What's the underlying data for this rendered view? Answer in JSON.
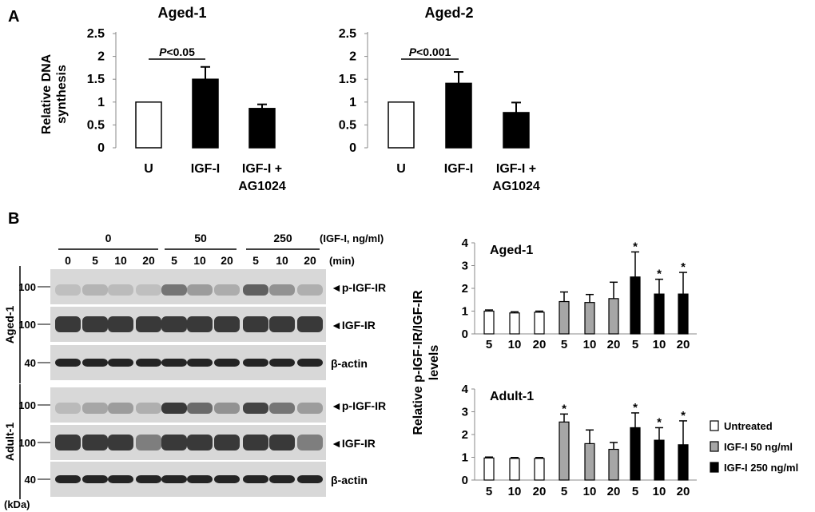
{
  "panels": {
    "a": "A",
    "b": "B"
  },
  "charts_a": [
    {
      "type": "bar",
      "title": "Aged-1",
      "ylabel": [
        "Relative DNA",
        "synthesis"
      ],
      "yticks": [
        "0",
        "0.5",
        "1",
        "1.5",
        "2",
        "2.5"
      ],
      "ylim": [
        0,
        2.5
      ],
      "categories": [
        [
          "U"
        ],
        [
          "IGF-I"
        ],
        [
          "IGF-I +",
          "AG1024"
        ]
      ],
      "values": [
        1.0,
        1.5,
        0.86
      ],
      "errors": [
        0.0,
        0.27,
        0.09
      ],
      "colors": [
        "#ffffff",
        "#000000",
        "#000000"
      ],
      "annotation": {
        "p_label": "P",
        "p_value": "<0.05"
      }
    },
    {
      "type": "bar",
      "title": "Aged-2",
      "ylabel": [],
      "yticks": [
        "0",
        "0.5",
        "1",
        "1.5",
        "2",
        "2.5"
      ],
      "ylim": [
        0,
        2.5
      ],
      "categories": [
        [
          "U"
        ],
        [
          "IGF-I"
        ],
        [
          "IGF-I +",
          "AG1024"
        ]
      ],
      "values": [
        1.0,
        1.41,
        0.77
      ],
      "errors": [
        0.0,
        0.25,
        0.22
      ],
      "colors": [
        "#ffffff",
        "#000000",
        "#000000"
      ],
      "annotation": {
        "p_label": "P",
        "p_value": "<0.001"
      }
    }
  ],
  "blot": {
    "dose_groups": [
      "0",
      "50",
      "250"
    ],
    "dose_unit": "(IGF-I, ng/ml)",
    "time_labels": [
      "0",
      "5",
      "10",
      "20",
      "5",
      "10",
      "20",
      "5",
      "10",
      "20"
    ],
    "time_unit": "(min)",
    "kda_label": "(kDa)",
    "sample_groups": [
      {
        "name": "Aged-1",
        "rows": [
          {
            "band": "p-IGF-IR",
            "marker": "100",
            "arrow": "◄"
          },
          {
            "band": "IGF-IR",
            "marker": "100",
            "arrow": "◄"
          },
          {
            "band": "β-actin",
            "marker": "40",
            "arrow": ""
          }
        ]
      },
      {
        "name": "Adult-1",
        "rows": [
          {
            "band": "p-IGF-IR",
            "marker": "100",
            "arrow": "◄"
          },
          {
            "band": "IGF-IR",
            "marker": "100",
            "arrow": "◄"
          },
          {
            "band": "β-actin",
            "marker": "40",
            "arrow": ""
          }
        ]
      }
    ]
  },
  "charts_b_ylabel": [
    "Relative p-IGF-IR/IGF-IR",
    "levels"
  ],
  "charts_b": [
    {
      "type": "bar",
      "title": "Aged-1",
      "yticks": [
        "0",
        "1",
        "2",
        "3",
        "4"
      ],
      "ylim": [
        0,
        4
      ],
      "categories": [
        "5",
        "10",
        "20",
        "5",
        "10",
        "20",
        "5",
        "10",
        "20"
      ],
      "values": [
        1.0,
        0.92,
        0.95,
        1.42,
        1.38,
        1.55,
        2.5,
        1.75,
        1.75
      ],
      "errors": [
        0.05,
        0.05,
        0.05,
        0.42,
        0.35,
        0.72,
        1.1,
        0.65,
        0.95
      ],
      "groups": [
        0,
        0,
        0,
        1,
        1,
        1,
        2,
        2,
        2
      ],
      "significant": [
        false,
        false,
        false,
        false,
        false,
        false,
        true,
        true,
        true
      ],
      "star": "*"
    },
    {
      "type": "bar",
      "title": "Adult-1",
      "yticks": [
        "0",
        "1",
        "2",
        "3",
        "4"
      ],
      "ylim": [
        0,
        4
      ],
      "categories": [
        "5",
        "10",
        "20",
        "5",
        "10",
        "20",
        "5",
        "10",
        "20"
      ],
      "values": [
        0.97,
        0.95,
        0.95,
        2.55,
        1.6,
        1.35,
        2.3,
        1.75,
        1.55
      ],
      "errors": [
        0.04,
        0.04,
        0.04,
        0.35,
        0.6,
        0.3,
        0.65,
        0.55,
        1.05
      ],
      "groups": [
        0,
        0,
        0,
        1,
        1,
        1,
        2,
        2,
        2
      ],
      "significant": [
        false,
        false,
        false,
        true,
        false,
        false,
        true,
        true,
        true
      ],
      "star": "*"
    }
  ],
  "legend": {
    "items": [
      {
        "label": "Untreated",
        "color": "#ffffff"
      },
      {
        "label": "IGF-I 50 ng/ml",
        "color": "#a6a6a6"
      },
      {
        "label": "IGF-I 250 ng/ml",
        "color": "#000000"
      }
    ]
  }
}
